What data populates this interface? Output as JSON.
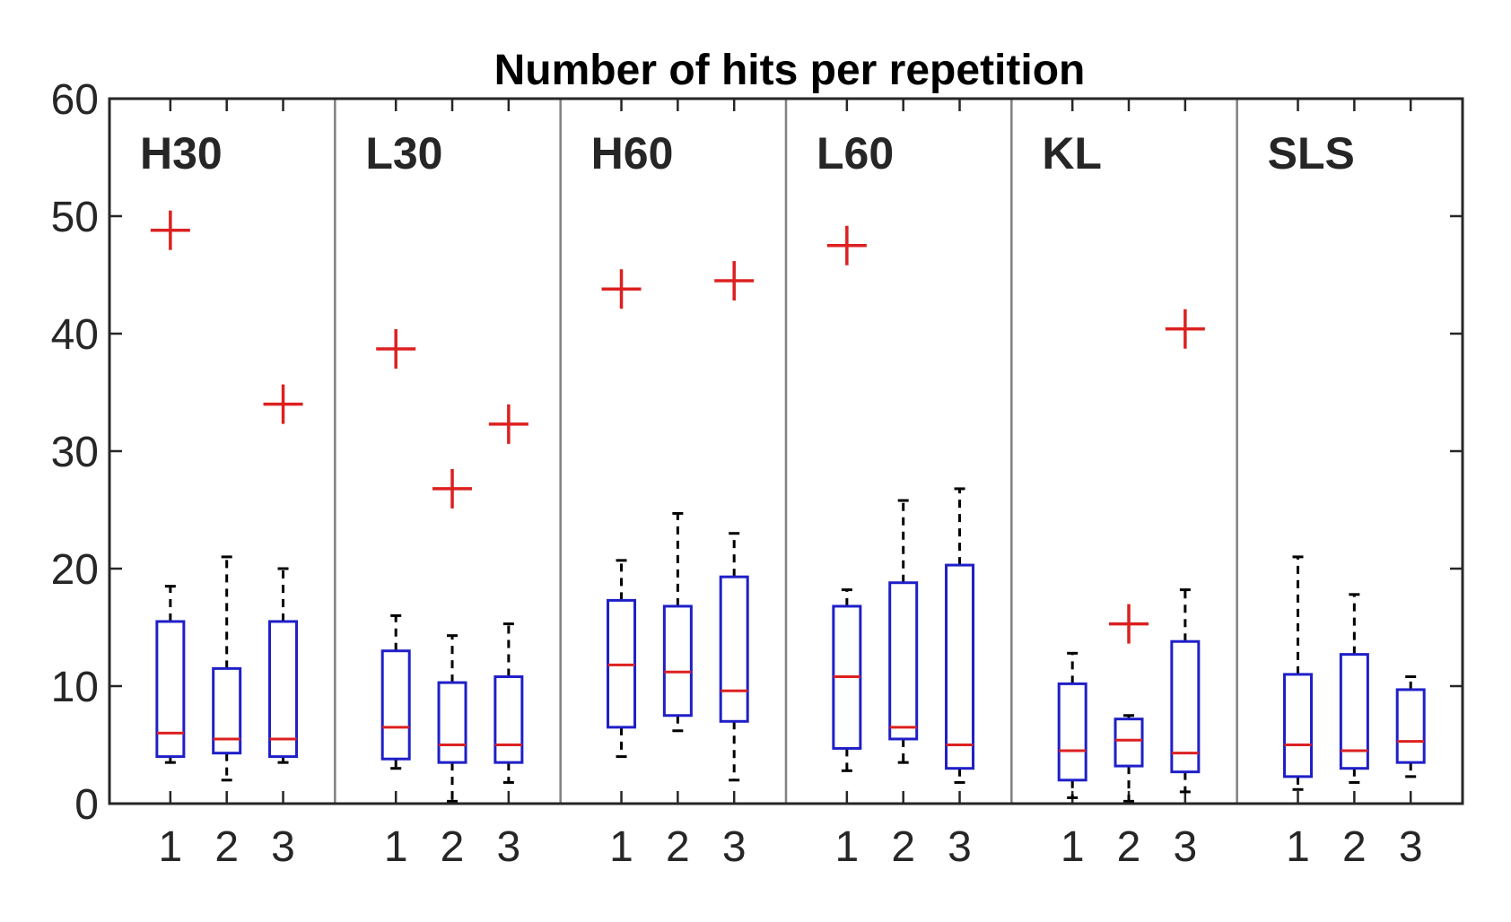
{
  "chart_data": {
    "type": "boxplot",
    "title": "Number of hits per repetition",
    "xlabel": "",
    "ylabel": "",
    "ylim": [
      0,
      60
    ],
    "yticks": [
      "0",
      "10",
      "20",
      "30",
      "40",
      "50",
      "60"
    ],
    "groups": [
      {
        "label": "H30",
        "boxes": [
          {
            "x": "1",
            "whisker_low": 3.5,
            "q1": 4,
            "median": 6,
            "q3": 15.5,
            "whisker_high": 18.5,
            "outliers": [
              48.8
            ]
          },
          {
            "x": "2",
            "whisker_low": 2,
            "q1": 4.3,
            "median": 5.5,
            "q3": 11.5,
            "whisker_high": 21,
            "outliers": []
          },
          {
            "x": "3",
            "whisker_low": 3.5,
            "q1": 4,
            "median": 5.5,
            "q3": 15.5,
            "whisker_high": 20,
            "outliers": [
              34
            ]
          }
        ]
      },
      {
        "label": "L30",
        "boxes": [
          {
            "x": "1",
            "whisker_low": 3,
            "q1": 3.8,
            "median": 6.5,
            "q3": 13,
            "whisker_high": 16,
            "outliers": [
              38.7
            ]
          },
          {
            "x": "2",
            "whisker_low": 0.2,
            "q1": 3.5,
            "median": 5,
            "q3": 10.3,
            "whisker_high": 14.3,
            "outliers": [
              26.8
            ]
          },
          {
            "x": "3",
            "whisker_low": 1.8,
            "q1": 3.5,
            "median": 5,
            "q3": 10.8,
            "whisker_high": 15.3,
            "outliers": [
              32.3
            ]
          }
        ]
      },
      {
        "label": "H60",
        "boxes": [
          {
            "x": "1",
            "whisker_low": 4,
            "q1": 6.5,
            "median": 11.8,
            "q3": 17.3,
            "whisker_high": 20.7,
            "outliers": [
              43.8
            ]
          },
          {
            "x": "2",
            "whisker_low": 6.2,
            "q1": 7.5,
            "median": 11.2,
            "q3": 16.8,
            "whisker_high": 24.7,
            "outliers": []
          },
          {
            "x": "3",
            "whisker_low": 2,
            "q1": 7,
            "median": 9.6,
            "q3": 19.3,
            "whisker_high": 23,
            "outliers": [
              44.5
            ]
          }
        ]
      },
      {
        "label": "L60",
        "boxes": [
          {
            "x": "1",
            "whisker_low": 2.8,
            "q1": 4.7,
            "median": 10.8,
            "q3": 16.8,
            "whisker_high": 18.2,
            "outliers": [
              47.5
            ]
          },
          {
            "x": "2",
            "whisker_low": 3.5,
            "q1": 5.5,
            "median": 6.5,
            "q3": 18.8,
            "whisker_high": 25.8,
            "outliers": []
          },
          {
            "x": "3",
            "whisker_low": 1.8,
            "q1": 3,
            "median": 5,
            "q3": 20.3,
            "whisker_high": 26.8,
            "outliers": []
          }
        ]
      },
      {
        "label": "KL",
        "boxes": [
          {
            "x": "1",
            "whisker_low": 0.5,
            "q1": 2,
            "median": 4.5,
            "q3": 10.2,
            "whisker_high": 12.8,
            "outliers": []
          },
          {
            "x": "2",
            "whisker_low": 0.2,
            "q1": 3.2,
            "median": 5.4,
            "q3": 7.2,
            "whisker_high": 7.5,
            "outliers": [
              15.3
            ]
          },
          {
            "x": "3",
            "whisker_low": 1,
            "q1": 2.7,
            "median": 4.3,
            "q3": 13.8,
            "whisker_high": 18.2,
            "outliers": [
              40.4
            ]
          }
        ]
      },
      {
        "label": "SLS",
        "boxes": [
          {
            "x": "1",
            "whisker_low": 1.2,
            "q1": 2.3,
            "median": 5,
            "q3": 11,
            "whisker_high": 21,
            "outliers": []
          },
          {
            "x": "2",
            "whisker_low": 1.8,
            "q1": 3,
            "median": 4.5,
            "q3": 12.7,
            "whisker_high": 17.8,
            "outliers": []
          },
          {
            "x": "3",
            "whisker_low": 2.3,
            "q1": 3.5,
            "median": 5.3,
            "q3": 9.7,
            "whisker_high": 10.8,
            "outliers": []
          }
        ]
      }
    ],
    "colors": {
      "box": "#1f1fc8",
      "median": "#dd2020",
      "outlier": "#dd2020",
      "whisker": "#000000",
      "axis": "#262626",
      "divider": "#808080"
    }
  }
}
